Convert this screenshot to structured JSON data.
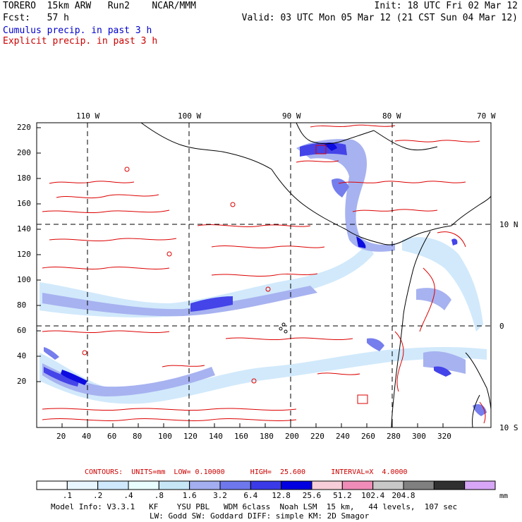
{
  "header": {
    "line1_left": "TORERO  15km ARW   Run2    NCAR/MMM",
    "line1_right": "Init: 18 UTC Fri 02 Mar 12",
    "line2_left": "Fcst:   57 h",
    "line2_right": "Valid: 03 UTC Mon 05 Mar 12 (21 CST Sun 04 Mar 12)",
    "legend_cumulus": "Cumulus precip. in past 3 h",
    "legend_explicit": "Explicit precip. in past 3 h"
  },
  "colors": {
    "cumulus_text": "#0000cc",
    "explicit_text": "#cc0000",
    "contour": "#dd0000",
    "coast": "#000000"
  },
  "map": {
    "top_lon_labels": [
      "110 W",
      "100 W",
      "90 W",
      "80 W",
      "70 W"
    ],
    "right_lat_labels": [
      "10 N",
      "0",
      "10 S"
    ],
    "y_grid_labels": [
      "220",
      "200",
      "180",
      "160",
      "140",
      "120",
      "100",
      "80",
      "60",
      "40",
      "20"
    ],
    "x_grid_labels": [
      "20",
      "40",
      "60",
      "80",
      "100",
      "120",
      "140",
      "160",
      "180",
      "200",
      "220",
      "240",
      "260",
      "280",
      "300",
      "320"
    ]
  },
  "contours_info": "CONTOURS:  UNITS=mm  LOW= 0.10000      HIGH=  25.600      INTERVAL=X  4.0000",
  "colorbar": {
    "thresholds": [
      ".1",
      ".2",
      ".4",
      ".8",
      "1.6",
      "3.2",
      "6.4",
      "12.8",
      "25.6",
      "51.2",
      "102.4",
      "204.8"
    ],
    "unit": "mm",
    "colors": [
      "#ffffff",
      "#e8f6ff",
      "#cfe8fb",
      "#e8fdfd",
      "#c6e6f6",
      "#a3aef0",
      "#6e78ec",
      "#3a3ae8",
      "#0000e0",
      "#f6cdd8",
      "#f08cb8",
      "#c8c8c8",
      "#808080",
      "#303030",
      "#d8a6f6"
    ]
  },
  "model_info": {
    "line1": "Model Info: V3.3.1   KF    YSU PBL   WDM 6class  Noah LSM  15 km,   44 levels,  107 sec",
    "line2": "LW: Godd SW: Goddard DIFF: simple KM: 2D Smagor"
  }
}
